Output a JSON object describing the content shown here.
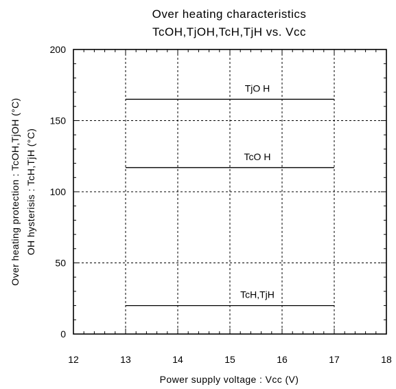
{
  "chart_data": {
    "type": "line",
    "title": "Over heating characteristics",
    "subtitle": "TcOH,TjOH,TcH,TjH vs. Vcc",
    "xlabel": "Power supply voltage : Vcc (V)",
    "ylabel": "Over heating protection : TcOH,TjOH (°C)",
    "ylabel2": "OH hysterisis : TcH,TjH (°C)",
    "xlim": [
      12,
      18
    ],
    "ylim": [
      0,
      200
    ],
    "x_ticks": [
      "12",
      "13",
      "14",
      "15",
      "16",
      "17",
      "18"
    ],
    "y_ticks": [
      "0",
      "50",
      "100",
      "150",
      "200"
    ],
    "grid": true,
    "series": [
      {
        "name": "TjO H",
        "x": [
          13,
          17
        ],
        "y": [
          165,
          165
        ]
      },
      {
        "name": "TcO H",
        "x": [
          13,
          17
        ],
        "y": [
          117,
          117
        ]
      },
      {
        "name": "TcH,TjH",
        "x": [
          13,
          17
        ],
        "y": [
          20,
          20
        ]
      }
    ]
  }
}
